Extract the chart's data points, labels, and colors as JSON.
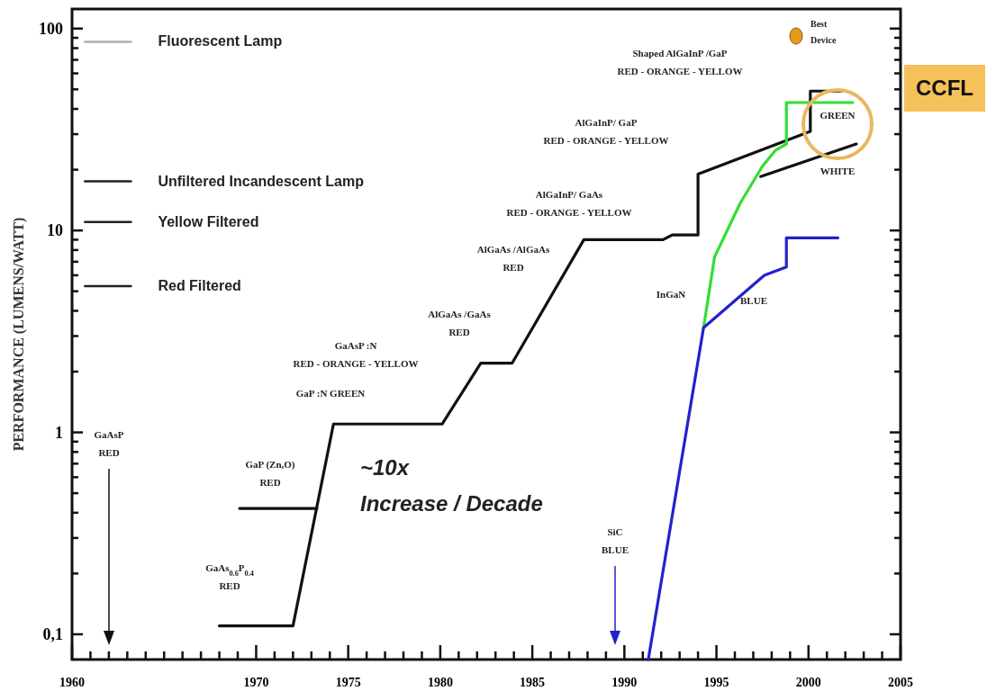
{
  "chart_data": {
    "type": "line",
    "ylabel": "PERFORMANCE (LUMENS/WATT)",
    "log": "y",
    "xlim": [
      1960,
      2005
    ],
    "ylim": [
      0.075,
      125
    ],
    "xticks": [
      1960,
      {
        "value": 1961,
        "label": null
      },
      {
        "value": 1962,
        "label": null
      },
      {
        "value": 1963,
        "label": null
      },
      {
        "value": 1964,
        "label": null
      },
      {
        "value": 1965,
        "label": null
      },
      {
        "value": 1966,
        "label": null
      },
      {
        "value": 1967,
        "label": null
      },
      {
        "value": 1968,
        "label": null
      },
      {
        "value": 1969,
        "label": null
      },
      1970,
      {
        "value": 1971,
        "label": null
      },
      {
        "value": 1972,
        "label": null
      },
      {
        "value": 1973,
        "label": null
      },
      {
        "value": 1974,
        "label": null
      },
      1975,
      {
        "value": 1976,
        "label": null
      },
      {
        "value": 1977,
        "label": null
      },
      {
        "value": 1978,
        "label": null
      },
      {
        "value": 1979,
        "label": null
      },
      1980,
      {
        "value": 1981,
        "label": null
      },
      {
        "value": 1982,
        "label": null
      },
      {
        "value": 1983,
        "label": null
      },
      {
        "value": 1984,
        "label": null
      },
      1985,
      {
        "value": 1986,
        "label": null
      },
      {
        "value": 1987,
        "label": null
      },
      {
        "value": 1988,
        "label": null
      },
      {
        "value": 1989,
        "label": null
      },
      1990,
      {
        "value": 1991,
        "label": null
      },
      {
        "value": 1992,
        "label": null
      },
      {
        "value": 1993,
        "label": null
      },
      {
        "value": 1994,
        "label": null
      },
      1995,
      {
        "value": 1996,
        "label": null
      },
      {
        "value": 1997,
        "label": null
      },
      {
        "value": 1998,
        "label": null
      },
      {
        "value": 1999,
        "label": null
      },
      2000,
      {
        "value": 2001,
        "label": null
      },
      {
        "value": 2002,
        "label": null
      },
      {
        "value": 2003,
        "label": null
      },
      {
        "value": 2004,
        "label": null
      },
      2005
    ],
    "yticks": [
      {
        "value": 0.1,
        "label": "0,1"
      },
      {
        "value": 0.2,
        "label": null
      },
      {
        "value": 0.3,
        "label": null
      },
      {
        "value": 0.4,
        "label": null
      },
      {
        "value": 0.5,
        "label": null
      },
      {
        "value": 0.6,
        "label": null
      },
      {
        "value": 0.7,
        "label": null
      },
      {
        "value": 0.8,
        "label": null
      },
      {
        "value": 0.9,
        "label": null
      },
      1,
      {
        "value": 2,
        "label": null
      },
      {
        "value": 3,
        "label": null
      },
      {
        "value": 4,
        "label": null
      },
      {
        "value": 5,
        "label": null
      },
      {
        "value": 6,
        "label": null
      },
      {
        "value": 7,
        "label": null
      },
      {
        "value": 8,
        "label": null
      },
      {
        "value": 9,
        "label": null
      },
      10,
      {
        "value": 20,
        "label": null
      },
      {
        "value": 30,
        "label": null
      },
      {
        "value": 40,
        "label": null
      },
      {
        "value": 50,
        "label": null
      },
      {
        "value": 60,
        "label": null
      },
      {
        "value": 70,
        "label": null
      },
      {
        "value": 80,
        "label": null
      },
      {
        "value": 90,
        "label": null
      },
      100
    ],
    "series": [
      {
        "name": "Fluorescent Lamp",
        "color": "#b0b0b0",
        "x": [
          1960.7,
          1963.2
        ],
        "values": [
          86,
          86
        ]
      },
      {
        "name": "Unfiltered Incandescent Lamp",
        "color": "#222222",
        "x": [
          1960.7,
          1963.2
        ],
        "values": [
          17.5,
          17.5
        ]
      },
      {
        "name": "Yellow Filtered",
        "color": "#222222",
        "x": [
          1960.7,
          1963.2
        ],
        "values": [
          11,
          11
        ]
      },
      {
        "name": "Red Filtered",
        "color": "#222222",
        "x": [
          1960.7,
          1963.2
        ],
        "values": [
          5.3,
          5.3
        ]
      },
      {
        "color": "#111111",
        "x": [
          1968,
          1972,
          1974.2,
          1980.1,
          1982.2,
          1983.9,
          1987.8,
          1992.1,
          1992.6,
          1994,
          1994,
          2000.1,
          2000.1,
          2001.8
        ],
        "values": [
          0.11,
          0.11,
          1.1,
          1.1,
          2.2,
          2.2,
          9,
          9,
          9.5,
          9.5,
          19,
          31,
          49,
          49
        ]
      },
      {
        "color": "#111111",
        "x": [
          1969.1,
          1973.3
        ],
        "values": [
          0.42,
          0.42
        ]
      },
      {
        "color": "#33dd33",
        "x": [
          1994.3,
          1994.9,
          1996.3,
          1997.5,
          1998.2,
          1998.8,
          1998.8,
          2002.4
        ],
        "values": [
          3.3,
          7.4,
          13.7,
          20.8,
          24.9,
          26.8,
          43,
          43
        ]
      },
      {
        "color": "#2222cc",
        "x": [
          1991.3,
          1994.3,
          1997.6,
          1998.8,
          1998.8,
          2001.6
        ],
        "values": [
          0.075,
          3.3,
          6.0,
          6.6,
          9.2,
          9.2
        ]
      },
      {
        "color": "#111111",
        "x": [
          1997.4,
          2002.6
        ],
        "values": [
          18.5,
          26.8
        ]
      }
    ],
    "annotations": [
      "GaAsP\nRED",
      "GaAs$_{0.6}$P$_{0.4}$\nRED",
      "GaP (Zn,O)\nRED",
      "GaAsP :N\nRED - ORANGE - YELLOW",
      "GaP :N GREEN",
      "AlGaAs /GaAs\nRED",
      "AlGaAs /AlGaAs\nRED",
      "AlGaInP/ GaAs\nRED - ORANGE - YELLOW",
      "AlGaInP/ GaP\nRED - ORANGE - YELLOW",
      "Shaped AlGaInP /GaP\nRED - ORANGE - YELLOW",
      "InGaN",
      "BLUE",
      "GREEN",
      "WHITE",
      "SiC\nBLUE",
      "~10x\nIncrease / Decade",
      "Best\nDevice",
      "CCFL"
    ]
  }
}
